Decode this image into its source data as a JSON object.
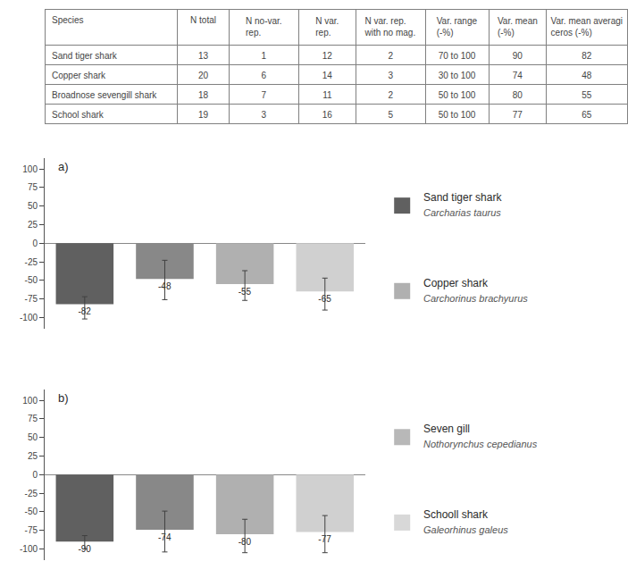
{
  "chart_data": [
    {
      "type": "table",
      "columns": [
        "Species",
        "N total",
        "N no-var. rep.",
        "N var. rep.",
        "N var. rep.\nwith no mag.",
        "Var. range\n(-%)",
        "Var. mean\n(-%)",
        "Var. mean averagi\nceros (-%)"
      ],
      "rows": [
        [
          "Sand tiger shark",
          "13",
          "1",
          "12",
          "2",
          "70 to 100",
          "90",
          "82"
        ],
        [
          "Copper shark",
          "20",
          "6",
          "14",
          "3",
          "30 to 100",
          "74",
          "48"
        ],
        [
          "Broadnose sevengill shark",
          "18",
          "7",
          "11",
          "2",
          "50 to 100",
          "80",
          "55"
        ],
        [
          "School shark",
          "19",
          "3",
          "16",
          "5",
          "50 to 100",
          "77",
          "65"
        ]
      ]
    },
    {
      "type": "bar",
      "title": "a)",
      "categories": [
        null,
        null,
        null,
        null
      ],
      "values": [
        -82,
        -48,
        -55,
        -65
      ],
      "err_low": [
        20,
        28,
        22,
        25
      ],
      "err_high": [
        10,
        25,
        18,
        18
      ],
      "colors": [
        "#606060",
        "#888888",
        "#b0b0b0",
        "#d0d0d0"
      ],
      "data_labels": true,
      "ylim": [
        -115,
        115
      ],
      "yticks": [
        -100,
        -75,
        -50,
        -25,
        0,
        25,
        50,
        75,
        100
      ],
      "grid": false,
      "tick_labels": "y",
      "legend_entries": [
        {
          "name": "Sand tiger shark",
          "subtitle": "Carcharias taurus",
          "color": "#606060"
        },
        {
          "name": "Copper shark",
          "subtitle": "Carchorinus brachyurus",
          "color": "#b0b0b0"
        }
      ]
    },
    {
      "type": "bar",
      "title": "b)",
      "categories": [
        null,
        null,
        null,
        null
      ],
      "values": [
        -90,
        -74,
        -80,
        -77
      ],
      "err_low": [
        10,
        30,
        25,
        28
      ],
      "err_high": [
        8,
        25,
        20,
        22
      ],
      "colors": [
        "#606060",
        "#888888",
        "#b0b0b0",
        "#d0d0d0"
      ],
      "data_labels": true,
      "ylim": [
        -115,
        115
      ],
      "yticks": [
        -100,
        -75,
        -50,
        -25,
        0,
        25,
        50,
        75,
        100
      ],
      "grid": false,
      "tick_labels": "y",
      "legend_entries": [
        {
          "name": "Seven gill",
          "subtitle": "Nothorynchus cepedianus",
          "color": "#b8b8b8"
        },
        {
          "name": "Schooll shark",
          "subtitle": "Galeorhinus galeus",
          "color": "#d8d8d8"
        }
      ]
    }
  ]
}
